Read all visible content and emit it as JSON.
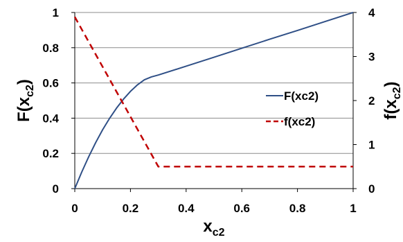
{
  "chart_data": {
    "type": "line",
    "x_ticks": [
      "0",
      "0.2",
      "0.4",
      "0.6",
      "0.8",
      "1"
    ],
    "y_left_ticks": [
      "0",
      "0.2",
      "0.4",
      "0.6",
      "0.8",
      "1"
    ],
    "y_right_ticks": [
      "0",
      "1",
      "2",
      "3",
      "4"
    ],
    "xlim": [
      0,
      1
    ],
    "ylim_left": [
      0,
      1
    ],
    "ylim_right": [
      0,
      4
    ],
    "xlabel": {
      "main": "x",
      "sub": "c2"
    },
    "ylabel_left": {
      "main": "F(x",
      "sub": "c2",
      "close": ")"
    },
    "ylabel_right": {
      "main": "f(x",
      "sub": "c2",
      "close": ")"
    },
    "grid": "horizontal",
    "legend_position": "right",
    "series": [
      {
        "name": "F(xc2)",
        "axis": "left",
        "color": "#2f4f86",
        "dash": "solid",
        "x": [
          0,
          0.025,
          0.05,
          0.075,
          0.1,
          0.125,
          0.15,
          0.175,
          0.2,
          0.225,
          0.25,
          0.275,
          0.3,
          0.4,
          0.5,
          0.6,
          0.7,
          0.8,
          0.9,
          1.0
        ],
        "y": [
          0,
          0.094,
          0.181,
          0.261,
          0.334,
          0.399,
          0.457,
          0.508,
          0.552,
          0.589,
          0.618,
          0.634,
          0.645,
          0.695,
          0.746,
          0.797,
          0.848,
          0.898,
          0.949,
          1.0
        ]
      },
      {
        "name": "f(xc2)",
        "axis": "right",
        "color": "#c00000",
        "dash": "dashed",
        "x": [
          0,
          0.3,
          1.0
        ],
        "y": [
          3.9,
          0.5,
          0.5
        ]
      }
    ]
  }
}
